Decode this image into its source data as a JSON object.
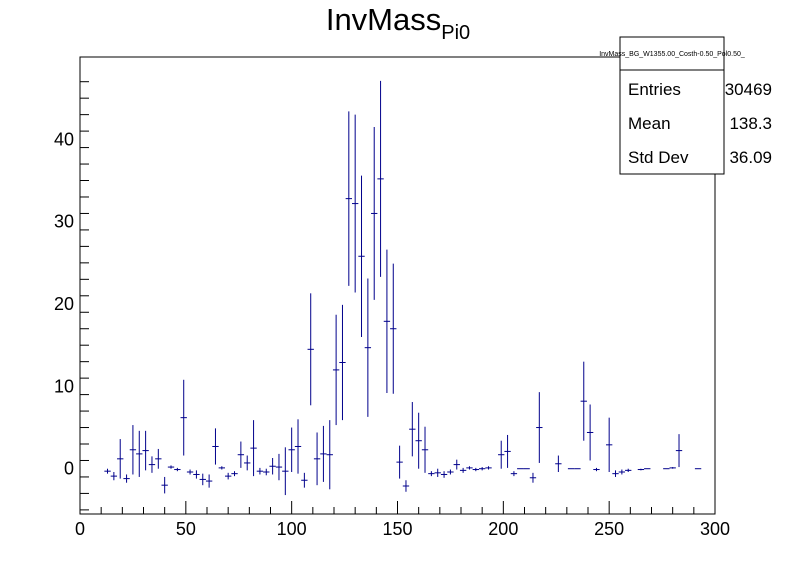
{
  "chart_data": {
    "type": "scatter",
    "title": "InvMass",
    "title_subscript": "Pi0",
    "xlim": [
      0,
      300
    ],
    "ylim": [
      -5.5,
      50
    ],
    "x_ticks": [
      "0",
      "50",
      "100",
      "150",
      "200",
      "250",
      "300"
    ],
    "y_ticks": [
      "0",
      "10",
      "20",
      "30",
      "40"
    ],
    "x_tick_values": [
      0,
      50,
      100,
      150,
      200,
      250,
      300
    ],
    "y_tick_values": [
      0,
      10,
      20,
      30,
      40
    ],
    "grid": false,
    "series_color": "#00008b",
    "points": [
      {
        "x": 13,
        "y": -0.3,
        "err": 0.3
      },
      {
        "x": 16,
        "y": -0.9,
        "err": 0.5
      },
      {
        "x": 19,
        "y": 1.2,
        "err": 2.4
      },
      {
        "x": 22,
        "y": -1.2,
        "err": 0.5
      },
      {
        "x": 25,
        "y": 2.3,
        "err": 3.0
      },
      {
        "x": 28,
        "y": 1.8,
        "err": 2.8
      },
      {
        "x": 31,
        "y": 2.2,
        "err": 2.4
      },
      {
        "x": 34,
        "y": 0.5,
        "err": 1.0
      },
      {
        "x": 37,
        "y": 1.2,
        "err": 1.2
      },
      {
        "x": 40,
        "y": -2.0,
        "err": 1.0
      },
      {
        "x": 43,
        "y": 0.2,
        "err": 0.2
      },
      {
        "x": 46,
        "y": -0.1,
        "err": 0.2
      },
      {
        "x": 49,
        "y": 6.2,
        "err": 4.6
      },
      {
        "x": 52,
        "y": -0.4,
        "err": 0.3
      },
      {
        "x": 55,
        "y": -0.7,
        "err": 0.5
      },
      {
        "x": 58,
        "y": -1.3,
        "err": 0.7
      },
      {
        "x": 61,
        "y": -1.5,
        "err": 0.8
      },
      {
        "x": 64,
        "y": 2.7,
        "err": 2.2
      },
      {
        "x": 67,
        "y": 0.1,
        "err": 0.2
      },
      {
        "x": 70,
        "y": -0.9,
        "err": 0.4
      },
      {
        "x": 73,
        "y": -0.6,
        "err": 0.3
      },
      {
        "x": 76,
        "y": 1.7,
        "err": 1.6
      },
      {
        "x": 79,
        "y": 0.7,
        "err": 0.9
      },
      {
        "x": 82,
        "y": 2.5,
        "err": 3.4
      },
      {
        "x": 85,
        "y": -0.3,
        "err": 0.4
      },
      {
        "x": 88,
        "y": -0.4,
        "err": 0.4
      },
      {
        "x": 91,
        "y": 0.3,
        "err": 1.0
      },
      {
        "x": 94,
        "y": 0.2,
        "err": 1.6
      },
      {
        "x": 97,
        "y": -0.3,
        "err": 2.9
      },
      {
        "x": 100,
        "y": 2.3,
        "err": 2.7
      },
      {
        "x": 103,
        "y": 2.7,
        "err": 3.3
      },
      {
        "x": 106,
        "y": -1.4,
        "err": 0.9
      },
      {
        "x": 109,
        "y": 14.5,
        "err": 6.8
      },
      {
        "x": 112,
        "y": 1.2,
        "err": 3.2
      },
      {
        "x": 115,
        "y": 1.8,
        "err": 3.4
      },
      {
        "x": 118,
        "y": 1.7,
        "err": 4.2
      },
      {
        "x": 121,
        "y": 12.0,
        "err": 6.7
      },
      {
        "x": 124,
        "y": 12.9,
        "err": 7.0
      },
      {
        "x": 127,
        "y": 32.8,
        "err": 10.6
      },
      {
        "x": 130,
        "y": 32.2,
        "err": 10.8
      },
      {
        "x": 133,
        "y": 25.8,
        "err": 9.8
      },
      {
        "x": 136,
        "y": 14.7,
        "err": 8.4
      },
      {
        "x": 139,
        "y": 31.0,
        "err": 10.5
      },
      {
        "x": 142,
        "y": 35.2,
        "err": 11.9
      },
      {
        "x": 145,
        "y": 17.9,
        "err": 8.7
      },
      {
        "x": 148,
        "y": 17.0,
        "err": 7.9
      },
      {
        "x": 151,
        "y": 0.8,
        "err": 2.0
      },
      {
        "x": 154,
        "y": -2.1,
        "err": 0.7
      },
      {
        "x": 157,
        "y": 4.8,
        "err": 3.3
      },
      {
        "x": 160,
        "y": 3.4,
        "err": 3.4
      },
      {
        "x": 163,
        "y": 2.3,
        "err": 2.8
      },
      {
        "x": 166,
        "y": -0.6,
        "err": 0.3
      },
      {
        "x": 169,
        "y": -0.5,
        "err": 0.5
      },
      {
        "x": 172,
        "y": -0.7,
        "err": 0.4
      },
      {
        "x": 175,
        "y": -0.4,
        "err": 0.3
      },
      {
        "x": 178,
        "y": 0.5,
        "err": 0.6
      },
      {
        "x": 181,
        "y": -0.2,
        "err": 0.3
      },
      {
        "x": 184,
        "y": 0.1,
        "err": 0.2
      },
      {
        "x": 187,
        "y": -0.1,
        "err": 0.2
      },
      {
        "x": 190,
        "y": 0.0,
        "err": 0.2
      },
      {
        "x": 193,
        "y": 0.1,
        "err": 0.2
      },
      {
        "x": 199,
        "y": 1.7,
        "err": 1.7
      },
      {
        "x": 202,
        "y": 2.1,
        "err": 2.0
      },
      {
        "x": 205,
        "y": -0.6,
        "err": 0.3
      },
      {
        "x": 208,
        "y": 0.0,
        "err": 0.0
      },
      {
        "x": 211,
        "y": 0.0,
        "err": 0.0
      },
      {
        "x": 214,
        "y": -1.1,
        "err": 0.6
      },
      {
        "x": 217,
        "y": 5.0,
        "err": 4.3
      },
      {
        "x": 226,
        "y": 0.6,
        "err": 1.0
      },
      {
        "x": 232,
        "y": 0.0,
        "err": 0.0
      },
      {
        "x": 235,
        "y": 0.0,
        "err": 0.0
      },
      {
        "x": 238,
        "y": 8.2,
        "err": 4.8
      },
      {
        "x": 241,
        "y": 4.4,
        "err": 3.4
      },
      {
        "x": 244,
        "y": -0.1,
        "err": 0.2
      },
      {
        "x": 250,
        "y": 2.9,
        "err": 3.3
      },
      {
        "x": 253,
        "y": -0.6,
        "err": 0.4
      },
      {
        "x": 256,
        "y": -0.4,
        "err": 0.3
      },
      {
        "x": 259,
        "y": -0.2,
        "err": 0.2
      },
      {
        "x": 265,
        "y": -0.1,
        "err": 0.1
      },
      {
        "x": 268,
        "y": 0.0,
        "err": 0.0
      },
      {
        "x": 277,
        "y": 0.0,
        "err": 0.0
      },
      {
        "x": 280,
        "y": 0.1,
        "err": 0.1
      },
      {
        "x": 283,
        "y": 2.2,
        "err": 2.0
      },
      {
        "x": 292,
        "y": 0.0,
        "err": 0.0
      }
    ],
    "stats_box": {
      "name": "InvMass_BG_W1355.00_Costh-0.50_Pol0.50_",
      "rows": [
        {
          "label": "Entries",
          "value": "30469"
        },
        {
          "label": "Mean",
          "value": "138.3"
        },
        {
          "label": "Std Dev",
          "value": "36.09"
        }
      ]
    }
  }
}
